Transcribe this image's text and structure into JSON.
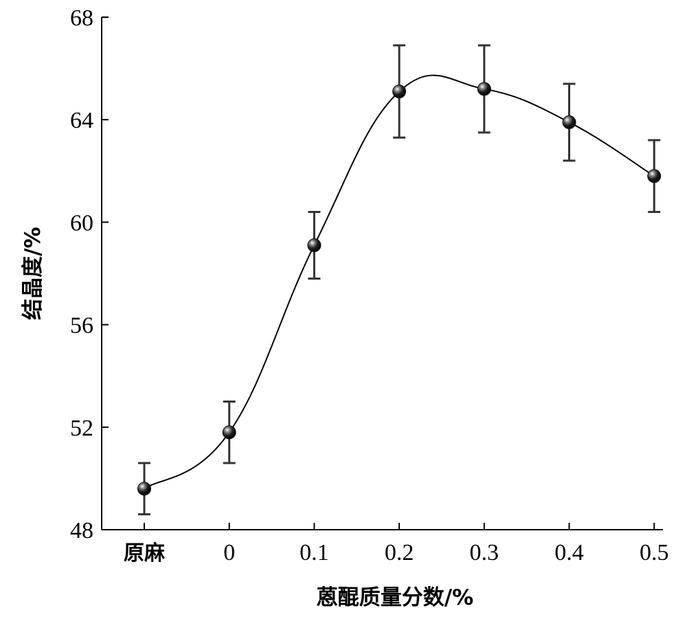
{
  "chart_data": {
    "type": "line",
    "categories": [
      "原麻",
      "0",
      "0.1",
      "0.2",
      "0.3",
      "0.4",
      "0.5"
    ],
    "values": [
      49.6,
      51.8,
      59.1,
      65.1,
      65.2,
      63.9,
      61.8
    ],
    "error": [
      1.0,
      1.2,
      1.3,
      1.8,
      1.7,
      1.5,
      1.4
    ],
    "xlabel": "蒽醌质量分数/%",
    "ylabel": "结晶度/%",
    "ylim": [
      48,
      68
    ],
    "yticks": [
      "48",
      "52",
      "56",
      "60",
      "64",
      "68"
    ],
    "grid": false,
    "smooth_curve": true,
    "marker": "sphere",
    "colors": {
      "line": "#000000",
      "marker": "#111111",
      "errorbar": "#333333"
    }
  }
}
